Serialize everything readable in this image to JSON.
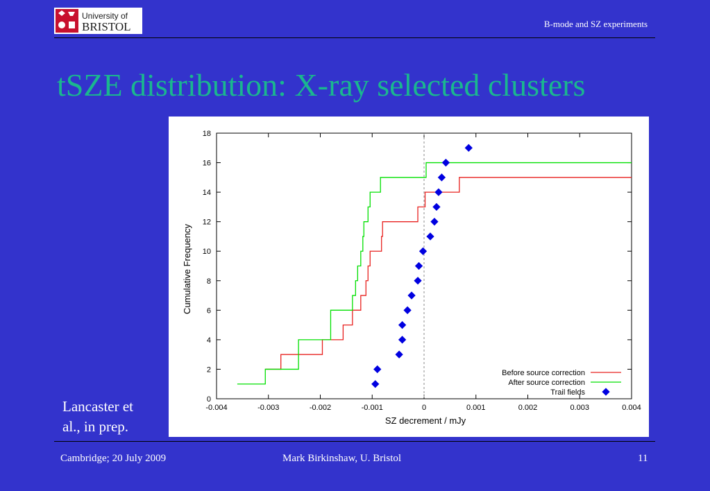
{
  "header": {
    "logo_line1": "University of",
    "logo_line2": "BRISTOL",
    "slide_topic": "B-mode and SZ experiments"
  },
  "title": "tSZE distribution: X-ray selected clusters",
  "caption": {
    "line1": "Lancaster et",
    "line2": "al., in prep."
  },
  "footer": {
    "left": "Cambridge; 20 July 2009",
    "center": "Mark Birkinshaw, U. Bristol",
    "page_number": "11"
  },
  "colors": {
    "background": "#3333cc",
    "title": "#1ab78f",
    "before_series": "#e8201e",
    "after_series": "#00e000",
    "trail_series": "#0000e0"
  },
  "chart_data": {
    "type": "line",
    "title": "",
    "xlabel": "SZ decrement / mJy",
    "ylabel": "Cumulative Frequency",
    "xlim": [
      -0.004,
      0.004
    ],
    "ylim": [
      0,
      18
    ],
    "xticks": [
      "-0.004",
      "-0.003",
      "-0.002",
      "-0.001",
      "0",
      "0.001",
      "0.002",
      "0.003",
      "0.004"
    ],
    "yticks": [
      "0",
      "2",
      "4",
      "6",
      "8",
      "10",
      "12",
      "14",
      "16",
      "18"
    ],
    "reference_line_x": 0,
    "legend_position": "bottom-right",
    "series": [
      {
        "name": "Before source correction",
        "style": "step",
        "x": [
          -0.00306,
          -0.00276,
          -0.00256,
          -0.00196,
          -0.00176,
          -0.00156,
          -0.00138,
          -0.00122,
          -0.0012,
          -0.00112,
          -0.00108,
          -0.00104,
          -0.00094,
          -0.00082,
          -0.0008,
          -0.00014,
          -0.00012,
          2e-05,
          0.00068,
          0.004
        ],
        "y": [
          2,
          3,
          3,
          4,
          4,
          5,
          6,
          7,
          7,
          8,
          9,
          10,
          10,
          11,
          12,
          12,
          13,
          14,
          15,
          15
        ]
      },
      {
        "name": "After source correction",
        "style": "step",
        "x": [
          -0.0036,
          -0.00306,
          -0.00256,
          -0.00242,
          -0.00196,
          -0.00192,
          -0.0018,
          -0.00142,
          -0.00138,
          -0.00132,
          -0.00128,
          -0.00122,
          -0.0012,
          -0.00118,
          -0.00116,
          -0.00114,
          -0.00108,
          -0.00104,
          -0.00084,
          0,
          4e-05,
          0.004
        ],
        "y": [
          1,
          2,
          2,
          4,
          4,
          4,
          6,
          6,
          7,
          8,
          9,
          10,
          10,
          11,
          12,
          12,
          13,
          14,
          15,
          15,
          16,
          16
        ]
      },
      {
        "name": "Trail fields",
        "style": "points",
        "x": [
          -0.00094,
          -0.0009,
          -0.00048,
          -0.00042,
          -0.00042,
          -0.00032,
          -0.00024,
          -0.00012,
          -0.0001,
          -2e-05,
          0.00012,
          0.0002,
          0.00024,
          0.00028,
          0.00034,
          0.00042,
          0.00086
        ],
        "y": [
          1,
          2,
          3,
          4,
          5,
          6,
          7,
          8,
          9,
          10,
          11,
          12,
          13,
          14,
          15,
          16,
          17
        ]
      }
    ]
  }
}
